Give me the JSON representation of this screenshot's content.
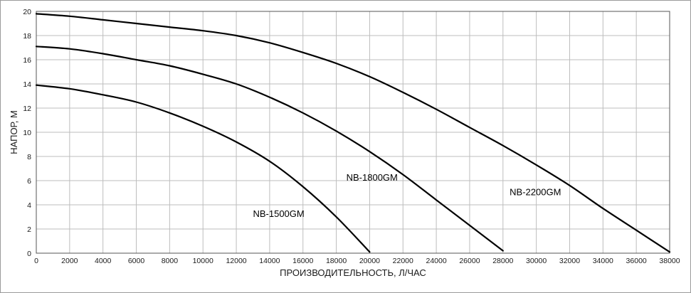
{
  "chart_data": {
    "type": "line",
    "title": "",
    "xlabel": "ПРОИЗВОДИТЕЛЬНОСТЬ,  Л/ЧАС",
    "ylabel": "НАПОР, М",
    "xlim": [
      0,
      38000
    ],
    "ylim": [
      0,
      20
    ],
    "x_ticks": [
      "0",
      "2000",
      "4000",
      "6000",
      "8000",
      "10000",
      "12000",
      "14000",
      "16000",
      "18000",
      "20000",
      "22000",
      "24000",
      "26000",
      "28000",
      "30000",
      "32000",
      "34000",
      "36000",
      "38000"
    ],
    "y_ticks": [
      "0",
      "2",
      "4",
      "6",
      "8",
      "10",
      "12",
      "14",
      "16",
      "18",
      "20"
    ],
    "grid": true,
    "legend": "none",
    "series": [
      {
        "name": "NB-1500GM",
        "points": [
          [
            0,
            13.9
          ],
          [
            2000,
            13.6
          ],
          [
            4000,
            13.1
          ],
          [
            6000,
            12.5
          ],
          [
            8000,
            11.6
          ],
          [
            10000,
            10.5
          ],
          [
            12000,
            9.2
          ],
          [
            14000,
            7.6
          ],
          [
            16000,
            5.5
          ],
          [
            18000,
            3.0
          ],
          [
            20000,
            0.1
          ]
        ]
      },
      {
        "name": "NB-1800GM",
        "points": [
          [
            0,
            17.1
          ],
          [
            2000,
            16.9
          ],
          [
            4000,
            16.5
          ],
          [
            6000,
            16.0
          ],
          [
            8000,
            15.5
          ],
          [
            10000,
            14.8
          ],
          [
            12000,
            14.0
          ],
          [
            14000,
            12.9
          ],
          [
            16000,
            11.6
          ],
          [
            18000,
            10.1
          ],
          [
            20000,
            8.4
          ],
          [
            22000,
            6.5
          ],
          [
            24000,
            4.4
          ],
          [
            26000,
            2.3
          ],
          [
            28000,
            0.2
          ]
        ]
      },
      {
        "name": "NB-2200GM",
        "points": [
          [
            0,
            19.8
          ],
          [
            2000,
            19.6
          ],
          [
            4000,
            19.3
          ],
          [
            6000,
            19.0
          ],
          [
            8000,
            18.7
          ],
          [
            10000,
            18.4
          ],
          [
            12000,
            18.0
          ],
          [
            14000,
            17.4
          ],
          [
            16000,
            16.6
          ],
          [
            18000,
            15.7
          ],
          [
            20000,
            14.6
          ],
          [
            22000,
            13.3
          ],
          [
            24000,
            11.9
          ],
          [
            26000,
            10.4
          ],
          [
            28000,
            8.9
          ],
          [
            30000,
            7.3
          ],
          [
            32000,
            5.6
          ],
          [
            34000,
            3.7
          ],
          [
            36000,
            1.9
          ],
          [
            38000,
            0.1
          ]
        ]
      }
    ]
  }
}
